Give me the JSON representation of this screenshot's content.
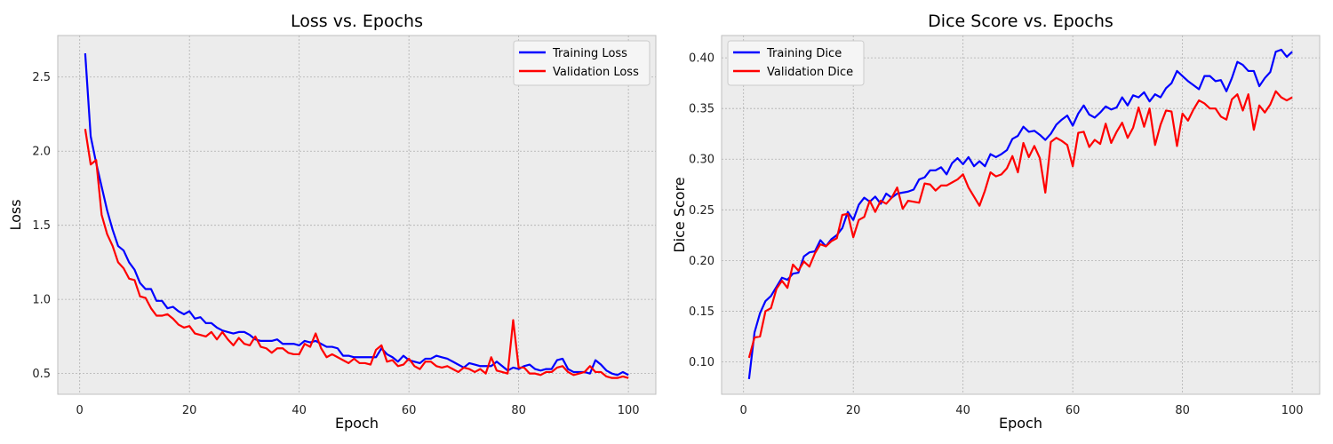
{
  "chart_data": [
    {
      "type": "line",
      "title": "Loss vs. Epochs",
      "xlabel": "Epoch",
      "ylabel": "Loss",
      "xlim": [
        -4,
        105
      ],
      "ylim": [
        0.36,
        2.78
      ],
      "xticks": [
        0,
        20,
        40,
        60,
        80,
        100
      ],
      "yticks": [
        0.5,
        1.0,
        1.5,
        2.0,
        2.5
      ],
      "ytick_labels": [
        "0.5",
        "1.0",
        "1.5",
        "2.0",
        "2.5"
      ],
      "grid": true,
      "legend_position": "top-right",
      "x": [
        1,
        2,
        3,
        4,
        5,
        6,
        7,
        8,
        9,
        10,
        11,
        12,
        13,
        14,
        15,
        16,
        17,
        18,
        19,
        20,
        21,
        22,
        23,
        24,
        25,
        26,
        27,
        28,
        29,
        30,
        31,
        32,
        33,
        34,
        35,
        36,
        37,
        38,
        39,
        40,
        41,
        42,
        43,
        44,
        45,
        46,
        47,
        48,
        49,
        50,
        51,
        52,
        53,
        54,
        55,
        56,
        57,
        58,
        59,
        60,
        61,
        62,
        63,
        64,
        65,
        66,
        67,
        68,
        69,
        70,
        71,
        72,
        73,
        74,
        75,
        76,
        77,
        78,
        79,
        80,
        81,
        82,
        83,
        84,
        85,
        86,
        87,
        88,
        89,
        90,
        91,
        92,
        93,
        94,
        95,
        96,
        97,
        98,
        99,
        100
      ],
      "series": [
        {
          "name": "Training Loss",
          "color": "#0000ff",
          "values": [
            2.66,
            2.1,
            1.92,
            1.76,
            1.6,
            1.47,
            1.36,
            1.33,
            1.25,
            1.2,
            1.11,
            1.07,
            1.07,
            0.99,
            0.99,
            0.94,
            0.95,
            0.92,
            0.9,
            0.92,
            0.87,
            0.88,
            0.84,
            0.84,
            0.81,
            0.79,
            0.78,
            0.77,
            0.78,
            0.78,
            0.76,
            0.73,
            0.72,
            0.72,
            0.72,
            0.73,
            0.7,
            0.7,
            0.7,
            0.69,
            0.72,
            0.71,
            0.72,
            0.7,
            0.68,
            0.68,
            0.67,
            0.62,
            0.62,
            0.61,
            0.61,
            0.61,
            0.61,
            0.61,
            0.67,
            0.63,
            0.61,
            0.58,
            0.62,
            0.59,
            0.58,
            0.57,
            0.6,
            0.6,
            0.62,
            0.61,
            0.6,
            0.58,
            0.56,
            0.54,
            0.57,
            0.56,
            0.55,
            0.55,
            0.55,
            0.58,
            0.55,
            0.52,
            0.54,
            0.53,
            0.55,
            0.56,
            0.53,
            0.52,
            0.53,
            0.53,
            0.59,
            0.6,
            0.53,
            0.51,
            0.51,
            0.51,
            0.5,
            0.59,
            0.56,
            0.52,
            0.5,
            0.49,
            0.51,
            0.49
          ]
        },
        {
          "name": "Validation Loss",
          "color": "#ff0000",
          "values": [
            2.15,
            1.91,
            1.94,
            1.57,
            1.44,
            1.36,
            1.25,
            1.21,
            1.14,
            1.13,
            1.02,
            1.01,
            0.94,
            0.89,
            0.89,
            0.9,
            0.87,
            0.83,
            0.81,
            0.82,
            0.77,
            0.76,
            0.75,
            0.78,
            0.73,
            0.78,
            0.73,
            0.69,
            0.74,
            0.7,
            0.69,
            0.75,
            0.68,
            0.67,
            0.64,
            0.67,
            0.67,
            0.64,
            0.63,
            0.63,
            0.7,
            0.68,
            0.77,
            0.67,
            0.61,
            0.63,
            0.61,
            0.59,
            0.57,
            0.6,
            0.57,
            0.57,
            0.56,
            0.66,
            0.69,
            0.58,
            0.59,
            0.55,
            0.56,
            0.6,
            0.55,
            0.53,
            0.58,
            0.58,
            0.55,
            0.54,
            0.55,
            0.53,
            0.51,
            0.54,
            0.53,
            0.51,
            0.53,
            0.5,
            0.61,
            0.52,
            0.51,
            0.5,
            0.86,
            0.54,
            0.54,
            0.5,
            0.5,
            0.49,
            0.51,
            0.51,
            0.54,
            0.55,
            0.51,
            0.49,
            0.5,
            0.51,
            0.55,
            0.51,
            0.51,
            0.48,
            0.47,
            0.47,
            0.48,
            0.47
          ]
        }
      ]
    },
    {
      "type": "line",
      "title": "Dice Score vs. Epochs",
      "xlabel": "Epoch",
      "ylabel": "Dice Score",
      "xlim": [
        -4,
        105
      ],
      "ylim": [
        0.068,
        0.422
      ],
      "xticks": [
        0,
        20,
        40,
        60,
        80,
        100
      ],
      "yticks": [
        0.1,
        0.15,
        0.2,
        0.25,
        0.3,
        0.35,
        0.4
      ],
      "ytick_labels": [
        "0.10",
        "0.15",
        "0.20",
        "0.25",
        "0.30",
        "0.35",
        "0.40"
      ],
      "grid": true,
      "legend_position": "top-left",
      "x": [
        1,
        2,
        3,
        4,
        5,
        6,
        7,
        8,
        9,
        10,
        11,
        12,
        13,
        14,
        15,
        16,
        17,
        18,
        19,
        20,
        21,
        22,
        23,
        24,
        25,
        26,
        27,
        28,
        29,
        30,
        31,
        32,
        33,
        34,
        35,
        36,
        37,
        38,
        39,
        40,
        41,
        42,
        43,
        44,
        45,
        46,
        47,
        48,
        49,
        50,
        51,
        52,
        53,
        54,
        55,
        56,
        57,
        58,
        59,
        60,
        61,
        62,
        63,
        64,
        65,
        66,
        67,
        68,
        69,
        70,
        71,
        72,
        73,
        74,
        75,
        76,
        77,
        78,
        79,
        80,
        81,
        82,
        83,
        84,
        85,
        86,
        87,
        88,
        89,
        90,
        91,
        92,
        93,
        94,
        95,
        96,
        97,
        98,
        99,
        100
      ],
      "series": [
        {
          "name": "Training Dice",
          "color": "#0000ff",
          "values": [
            0.083,
            0.129,
            0.148,
            0.16,
            0.165,
            0.174,
            0.183,
            0.181,
            0.187,
            0.188,
            0.204,
            0.208,
            0.209,
            0.22,
            0.214,
            0.221,
            0.225,
            0.232,
            0.248,
            0.24,
            0.255,
            0.262,
            0.258,
            0.263,
            0.256,
            0.266,
            0.262,
            0.266,
            0.267,
            0.268,
            0.27,
            0.28,
            0.282,
            0.289,
            0.289,
            0.292,
            0.285,
            0.296,
            0.301,
            0.295,
            0.302,
            0.293,
            0.298,
            0.293,
            0.305,
            0.302,
            0.305,
            0.309,
            0.32,
            0.323,
            0.332,
            0.327,
            0.328,
            0.324,
            0.319,
            0.325,
            0.334,
            0.339,
            0.343,
            0.333,
            0.345,
            0.353,
            0.344,
            0.341,
            0.346,
            0.352,
            0.349,
            0.351,
            0.361,
            0.353,
            0.363,
            0.361,
            0.366,
            0.357,
            0.364,
            0.361,
            0.37,
            0.375,
            0.387,
            0.382,
            0.377,
            0.373,
            0.369,
            0.382,
            0.382,
            0.377,
            0.378,
            0.367,
            0.38,
            0.396,
            0.393,
            0.387,
            0.387,
            0.372,
            0.38,
            0.386,
            0.406,
            0.408,
            0.401,
            0.406
          ]
        },
        {
          "name": "Validation Dice",
          "color": "#ff0000",
          "values": [
            0.104,
            0.124,
            0.125,
            0.15,
            0.153,
            0.172,
            0.18,
            0.173,
            0.196,
            0.19,
            0.199,
            0.194,
            0.207,
            0.216,
            0.214,
            0.219,
            0.222,
            0.245,
            0.246,
            0.223,
            0.24,
            0.243,
            0.259,
            0.248,
            0.259,
            0.256,
            0.262,
            0.272,
            0.251,
            0.259,
            0.258,
            0.257,
            0.276,
            0.275,
            0.269,
            0.274,
            0.274,
            0.277,
            0.28,
            0.285,
            0.272,
            0.263,
            0.254,
            0.269,
            0.287,
            0.283,
            0.285,
            0.291,
            0.303,
            0.287,
            0.316,
            0.302,
            0.313,
            0.301,
            0.267,
            0.317,
            0.321,
            0.318,
            0.314,
            0.293,
            0.326,
            0.327,
            0.312,
            0.319,
            0.315,
            0.335,
            0.316,
            0.327,
            0.336,
            0.321,
            0.331,
            0.351,
            0.332,
            0.35,
            0.314,
            0.334,
            0.348,
            0.347,
            0.313,
            0.345,
            0.338,
            0.349,
            0.358,
            0.355,
            0.35,
            0.35,
            0.342,
            0.339,
            0.359,
            0.364,
            0.348,
            0.364,
            0.329,
            0.353,
            0.346,
            0.354,
            0.367,
            0.361,
            0.358,
            0.361
          ]
        }
      ]
    }
  ]
}
